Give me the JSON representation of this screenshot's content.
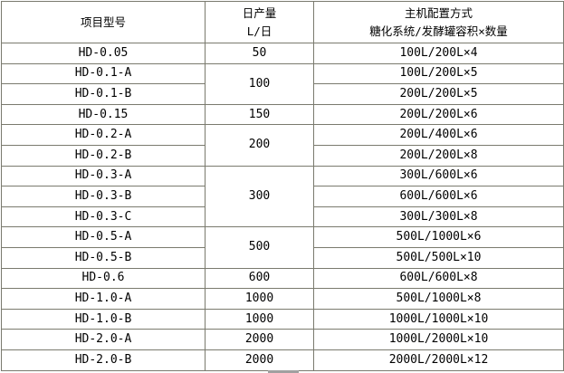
{
  "header": {
    "model": "项目型号",
    "daily_line1": "日产量",
    "daily_line2": "L/日",
    "config_line1": "主机配置方式",
    "config_line2": "糖化系统/发酵罐容积×数量"
  },
  "rows": [
    {
      "model": "HD-0.05",
      "daily": "50",
      "config": "100L/200L×4"
    },
    {
      "model": "HD-0.1-A",
      "daily": "100",
      "config": "100L/200L×5"
    },
    {
      "model": "HD-0.1-B",
      "config": "200L/200L×5"
    },
    {
      "model": "HD-0.15",
      "daily": "150",
      "config": "200L/200L×6"
    },
    {
      "model": "HD-0.2-A",
      "daily": "200",
      "config": "200L/400L×6"
    },
    {
      "model": "HD-0.2-B",
      "config": "200L/200L×8"
    },
    {
      "model": "HD-0.3-A",
      "daily": "300",
      "config": "300L/600L×6"
    },
    {
      "model": "HD-0.3-B",
      "config": "600L/600L×6"
    },
    {
      "model": "HD-0.3-C",
      "config": "300L/300L×8"
    },
    {
      "model": "HD-0.5-A",
      "daily": "500",
      "config": "500L/1000L×6"
    },
    {
      "model": "HD-0.5-B",
      "config": "500L/500L×10"
    },
    {
      "model": "HD-0.6",
      "daily": "600",
      "config": "600L/600L×8"
    },
    {
      "model": "HD-1.0-A",
      "daily": "1000",
      "config": "500L/1000L×8"
    },
    {
      "model": "HD-1.0-B",
      "daily": "1000",
      "config": "1000L/1000L×10"
    },
    {
      "model": "HD-2.0-A",
      "daily": "2000",
      "config": "1000L/2000L×10"
    },
    {
      "model": "HD-2.0-B",
      "daily": "2000",
      "config": "2000L/2000L×12"
    }
  ]
}
